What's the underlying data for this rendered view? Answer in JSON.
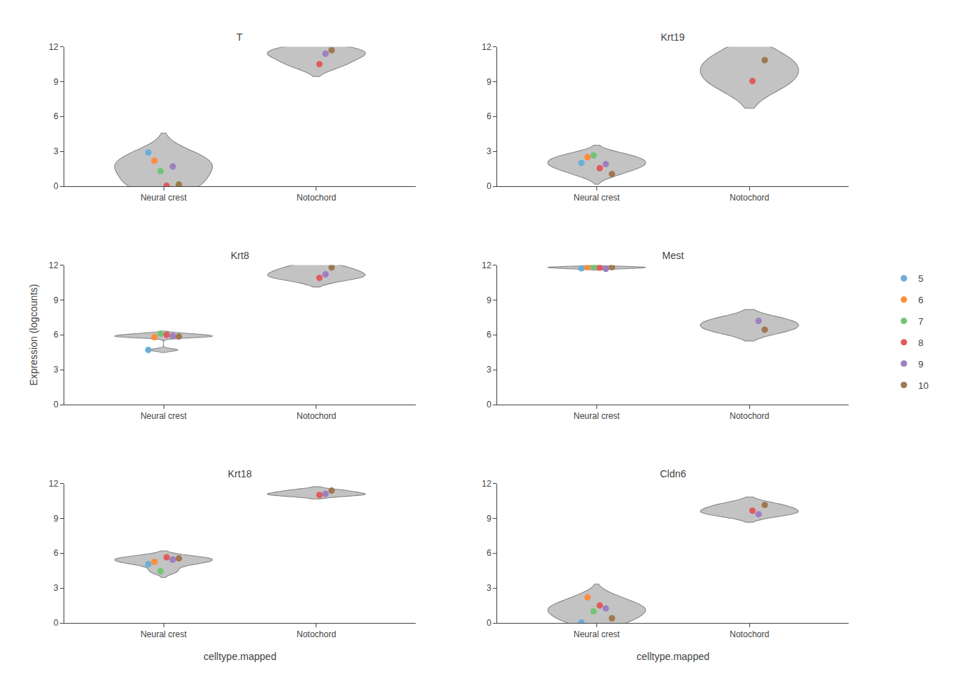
{
  "chart_data": [
    {
      "type": "violin",
      "title": "T",
      "categories": [
        "Neural crest",
        "Notochord"
      ],
      "series": [
        {
          "name": "5",
          "color": "#6baed6",
          "values": [
            2.9,
            null
          ]
        },
        {
          "name": "6",
          "color": "#fd8d3c",
          "values": [
            2.2,
            null
          ]
        },
        {
          "name": "7",
          "color": "#74c476",
          "values": [
            1.3,
            null
          ]
        },
        {
          "name": "8",
          "color": "#e05c5c",
          "values": [
            0.05,
            10.5
          ]
        },
        {
          "name": "9",
          "color": "#9e7fc0",
          "values": [
            1.7,
            11.4
          ]
        },
        {
          "name": "10",
          "color": "#a07850",
          "values": [
            0.15,
            11.7
          ]
        }
      ],
      "color": "#888888",
      "ylim": [
        0,
        12
      ],
      "yticks": [
        0,
        3,
        6,
        9,
        12
      ],
      "grid": false,
      "legend": "right"
    },
    {
      "type": "violin",
      "title": "Krt19",
      "categories": [
        "Neural crest",
        "Notochord"
      ],
      "series": [
        {
          "name": "5",
          "color": "#6baed6",
          "values": [
            2.0,
            null
          ]
        },
        {
          "name": "6",
          "color": "#fd8d3c",
          "values": [
            2.5,
            null
          ]
        },
        {
          "name": "7",
          "color": "#74c476",
          "values": [
            2.65,
            null
          ]
        },
        {
          "name": "8",
          "color": "#e05c5c",
          "values": [
            1.55,
            9.05
          ]
        },
        {
          "name": "9",
          "color": "#9e7fc0",
          "values": [
            1.9,
            null
          ]
        },
        {
          "name": "10",
          "color": "#a07850",
          "values": [
            1.05,
            10.85
          ]
        }
      ],
      "color": "#888888",
      "ylim": [
        0,
        12
      ],
      "yticks": [
        0,
        3,
        6,
        9,
        12
      ],
      "grid": false
    },
    {
      "type": "violin",
      "title": "Krt8",
      "ylabel": "Expression (logcounts)",
      "categories": [
        "Neural crest",
        "Notochord"
      ],
      "series": [
        {
          "name": "5",
          "color": "#6baed6",
          "values": [
            4.7,
            null
          ]
        },
        {
          "name": "6",
          "color": "#fd8d3c",
          "values": [
            5.8,
            null
          ]
        },
        {
          "name": "7",
          "color": "#74c476",
          "values": [
            6.1,
            null
          ]
        },
        {
          "name": "8",
          "color": "#e05c5c",
          "values": [
            6.0,
            10.9
          ]
        },
        {
          "name": "9",
          "color": "#9e7fc0",
          "values": [
            5.9,
            11.2
          ]
        },
        {
          "name": "10",
          "color": "#a07850",
          "values": [
            5.85,
            11.8
          ]
        }
      ],
      "color": "#888888",
      "ylim": [
        0,
        12
      ],
      "yticks": [
        0,
        3,
        6,
        9,
        12
      ],
      "grid": false
    },
    {
      "type": "violin",
      "title": "Mest",
      "categories": [
        "Neural crest",
        "Notochord"
      ],
      "series": [
        {
          "name": "5",
          "color": "#6baed6",
          "values": [
            11.72,
            null
          ]
        },
        {
          "name": "6",
          "color": "#fd8d3c",
          "values": [
            11.82,
            null
          ]
        },
        {
          "name": "7",
          "color": "#74c476",
          "values": [
            11.88,
            null
          ]
        },
        {
          "name": "8",
          "color": "#e05c5c",
          "values": [
            11.78,
            null
          ]
        },
        {
          "name": "9",
          "color": "#9e7fc0",
          "values": [
            11.68,
            7.2
          ]
        },
        {
          "name": "10",
          "color": "#a07850",
          "values": [
            11.82,
            6.45
          ]
        }
      ],
      "color": "#888888",
      "ylim": [
        0,
        12
      ],
      "yticks": [
        0,
        3,
        6,
        9,
        12
      ],
      "grid": false
    },
    {
      "type": "violin",
      "title": "Krt18",
      "xlabel": "celltype.mapped",
      "categories": [
        "Neural crest",
        "Notochord"
      ],
      "series": [
        {
          "name": "5",
          "color": "#6baed6",
          "values": [
            5.05,
            null
          ]
        },
        {
          "name": "6",
          "color": "#fd8d3c",
          "values": [
            5.25,
            null
          ]
        },
        {
          "name": "7",
          "color": "#74c476",
          "values": [
            4.45,
            null
          ]
        },
        {
          "name": "8",
          "color": "#e05c5c",
          "values": [
            5.65,
            11.0
          ]
        },
        {
          "name": "9",
          "color": "#9e7fc0",
          "values": [
            5.45,
            11.1
          ]
        },
        {
          "name": "10",
          "color": "#a07850",
          "values": [
            5.55,
            11.38
          ]
        }
      ],
      "color": "#888888",
      "ylim": [
        0,
        12
      ],
      "yticks": [
        0,
        3,
        6,
        9,
        12
      ],
      "grid": false
    },
    {
      "type": "violin",
      "title": "Cldn6",
      "xlabel": "celltype.mapped",
      "categories": [
        "Neural crest",
        "Notochord"
      ],
      "series": [
        {
          "name": "5",
          "color": "#6baed6",
          "values": [
            0.05,
            null
          ]
        },
        {
          "name": "6",
          "color": "#fd8d3c",
          "values": [
            2.2,
            null
          ]
        },
        {
          "name": "7",
          "color": "#74c476",
          "values": [
            1.0,
            null
          ]
        },
        {
          "name": "8",
          "color": "#e05c5c",
          "values": [
            1.5,
            9.65
          ]
        },
        {
          "name": "9",
          "color": "#9e7fc0",
          "values": [
            1.25,
            9.35
          ]
        },
        {
          "name": "10",
          "color": "#a07850",
          "values": [
            0.4,
            10.15
          ]
        }
      ],
      "color": "#888888",
      "ylim": [
        0,
        12
      ],
      "yticks": [
        0,
        3,
        6,
        9,
        12
      ],
      "grid": false
    }
  ]
}
